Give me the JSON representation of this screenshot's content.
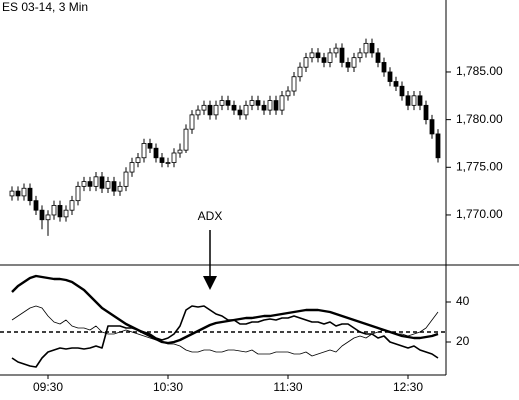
{
  "chart_data": [
    {
      "type": "candlestick",
      "title": "ES 03-14, 3 Min",
      "open": [
        1772,
        1772.5,
        1772,
        1772.8,
        1771.5,
        1770.5,
        1769.5,
        1770,
        1771,
        1769.8,
        1770.5,
        1771.5,
        1773,
        1773.5,
        1773,
        1774,
        1772.8,
        1773.5,
        1772.5,
        1773,
        1774.5,
        1775.5,
        1776,
        1777.5,
        1777,
        1776,
        1775.5,
        1775.5,
        1776.5,
        1776.8,
        1779,
        1780.5,
        1781,
        1781.5,
        1780.5,
        1781.5,
        1782,
        1781.5,
        1781,
        1780.5,
        1781.5,
        1782,
        1781.5,
        1781,
        1782,
        1781,
        1782.5,
        1783,
        1784.5,
        1785.5,
        1786.5,
        1787,
        1786.5,
        1786,
        1787,
        1787.5,
        1786,
        1785.5,
        1786.5,
        1787,
        1788,
        1787,
        1786,
        1785,
        1784,
        1783.5,
        1782.5,
        1781.5,
        1782.5,
        1781.5,
        1780,
        1778.5
      ],
      "high": [
        1773,
        1773,
        1773.3,
        1773.3,
        1772,
        1771,
        1770.5,
        1771.5,
        1771.5,
        1771,
        1772,
        1773.5,
        1774,
        1774,
        1774.5,
        1774.5,
        1774,
        1774,
        1773.5,
        1775,
        1776,
        1776.5,
        1778,
        1778,
        1777.5,
        1776.5,
        1776,
        1777,
        1777.5,
        1779.5,
        1781,
        1781.5,
        1782,
        1782,
        1782,
        1782.5,
        1782.5,
        1782,
        1781.5,
        1782,
        1782.5,
        1782.5,
        1782,
        1782.5,
        1782.5,
        1783,
        1783.5,
        1785,
        1786,
        1787,
        1787.5,
        1787.5,
        1787,
        1787.5,
        1788,
        1788,
        1786.5,
        1787,
        1787.5,
        1788.5,
        1788.5,
        1787.5,
        1786.5,
        1785.5,
        1784.5,
        1784,
        1783,
        1783,
        1783,
        1782,
        1780.5,
        1779
      ],
      "low": [
        1771.5,
        1771.5,
        1771.5,
        1771,
        1770,
        1768.5,
        1767.8,
        1769.5,
        1769.3,
        1769.3,
        1770,
        1771,
        1772.5,
        1772.5,
        1772.5,
        1772.3,
        1772.3,
        1772,
        1772,
        1772.5,
        1774,
        1775,
        1775.5,
        1776.5,
        1775.5,
        1775,
        1775,
        1775,
        1776,
        1776.5,
        1778.5,
        1780,
        1780.5,
        1780,
        1780,
        1781,
        1781,
        1780.5,
        1780,
        1780,
        1781,
        1781,
        1780.5,
        1780.5,
        1780.5,
        1780.5,
        1782,
        1782.5,
        1784,
        1785,
        1786,
        1786,
        1785.5,
        1785.5,
        1786.5,
        1785.5,
        1785,
        1785,
        1786,
        1786.5,
        1786.5,
        1785.5,
        1784.5,
        1783.5,
        1783,
        1782,
        1781,
        1781,
        1781,
        1779.5,
        1778,
        1775.5
      ],
      "close": [
        1772.5,
        1772,
        1772.8,
        1771.5,
        1770.5,
        1769.5,
        1770,
        1771,
        1769.8,
        1770.5,
        1771.5,
        1773,
        1773.5,
        1773,
        1774,
        1772.8,
        1773.5,
        1772.5,
        1773,
        1774.5,
        1775.5,
        1776,
        1777.5,
        1777,
        1776,
        1775.5,
        1775.5,
        1776.5,
        1776.8,
        1779,
        1780.5,
        1781,
        1781.5,
        1780.5,
        1781.5,
        1782,
        1781.5,
        1781,
        1780.5,
        1781.5,
        1782,
        1781.5,
        1781,
        1782,
        1781,
        1782.5,
        1783,
        1784.5,
        1785.5,
        1786.5,
        1787,
        1786.5,
        1786,
        1787,
        1787.5,
        1786,
        1785.5,
        1786.5,
        1787,
        1788,
        1787,
        1786,
        1785,
        1784,
        1783.5,
        1782.5,
        1781.5,
        1782.5,
        1781.5,
        1780,
        1778.5,
        1776
      ],
      "up_color": "#ffffff",
      "down_color": "#000000",
      "ylim": [
        1764.75,
        1792.55
      ],
      "yticks": [
        {
          "value": 1770,
          "label": "1,770.00"
        },
        {
          "value": 1775,
          "label": "1,775.00"
        },
        {
          "value": 1780,
          "label": "1,780.00"
        },
        {
          "value": 1785,
          "label": "1,785.00"
        }
      ]
    },
    {
      "type": "line",
      "annotation": "ADX",
      "categories": [
        null,
        null,
        null,
        null,
        null,
        null,
        "09:30",
        null,
        null,
        null,
        null,
        null,
        null,
        null,
        null,
        null,
        null,
        null,
        null,
        null,
        null,
        null,
        null,
        null,
        null,
        null,
        "10:30",
        null,
        null,
        null,
        null,
        null,
        null,
        null,
        null,
        null,
        null,
        null,
        null,
        null,
        null,
        null,
        null,
        null,
        null,
        null,
        "11:30",
        null,
        null,
        null,
        null,
        null,
        null,
        null,
        null,
        null,
        null,
        null,
        null,
        null,
        null,
        null,
        null,
        null,
        null,
        null,
        "12:30",
        null,
        null,
        null,
        null,
        null
      ],
      "series": [
        {
          "color": "#000000",
          "width": 2.4,
          "values": [
            45,
            48,
            50,
            52,
            53,
            52.5,
            52,
            51.5,
            51.5,
            51,
            50,
            48,
            46,
            43,
            40,
            37,
            35,
            33,
            31,
            29,
            27.5,
            26,
            24.5,
            23,
            21.5,
            20,
            19.5,
            20,
            21,
            22.5,
            24,
            25.5,
            27,
            28.5,
            29.5,
            30,
            30.5,
            31,
            31.5,
            32,
            32,
            32.5,
            33,
            33,
            33.5,
            34,
            34.5,
            35,
            35.5,
            36,
            36,
            36,
            35.5,
            35,
            34,
            33,
            32,
            31,
            30,
            29,
            28,
            27,
            26,
            25,
            24,
            23,
            22.5,
            22,
            22,
            22.5,
            23,
            24
          ]
        },
        {
          "color": "#000000",
          "width": 1.6,
          "values": [
            12,
            10,
            9,
            8,
            7.5,
            12,
            15,
            16,
            17,
            16.5,
            17,
            17,
            16.5,
            17,
            18,
            17,
            28,
            28,
            28,
            27,
            27,
            26,
            25,
            24,
            22,
            21,
            22,
            24,
            28,
            36,
            38,
            37.5,
            38,
            36,
            34,
            33,
            31,
            31,
            29,
            29,
            30,
            30,
            31,
            31.5,
            31,
            32,
            32,
            33,
            32,
            31,
            30,
            30,
            29,
            30,
            28,
            29,
            29,
            27,
            25,
            24,
            24,
            22,
            23,
            20,
            19,
            18,
            17,
            18,
            16,
            15,
            14,
            12
          ]
        },
        {
          "color": "#000000",
          "width": 0.8,
          "values": [
            31,
            33,
            35,
            37,
            38,
            37,
            33,
            30,
            29,
            31,
            28,
            27,
            27,
            26,
            28,
            25,
            24,
            24,
            25,
            26,
            25,
            24,
            23,
            22,
            21,
            20,
            19,
            19,
            18,
            16,
            15,
            15,
            16,
            16,
            15,
            15,
            16,
            16,
            15.5,
            15,
            16,
            14,
            14,
            14,
            15,
            15,
            15,
            14,
            14,
            15,
            13,
            14,
            15,
            16,
            15,
            18,
            20,
            22,
            23,
            22,
            24,
            25,
            26,
            25,
            24,
            24,
            23,
            24,
            25,
            27,
            31,
            35
          ]
        }
      ],
      "hline": 25,
      "ylim": [
        3.5,
        58.5
      ],
      "yticks": [
        20,
        40
      ]
    }
  ]
}
